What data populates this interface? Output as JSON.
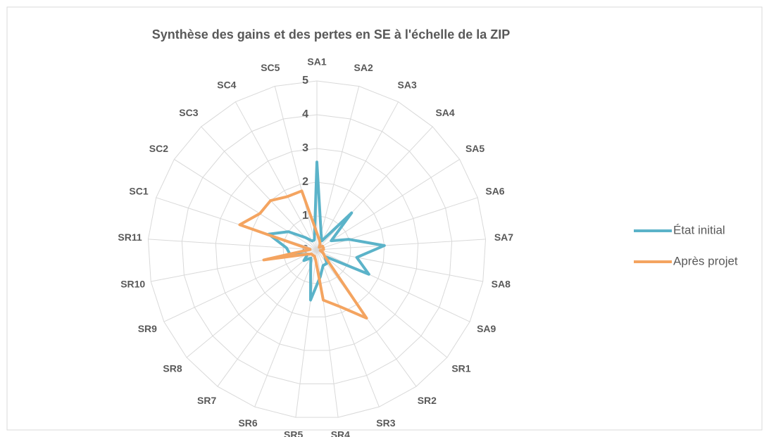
{
  "chart_data": {
    "type": "radar",
    "title": "Synthèse des gains et des pertes en SE à l'échelle de la ZIP",
    "categories": [
      "SA1",
      "SA2",
      "SA3",
      "SA4",
      "SA5",
      "SA6",
      "SA7",
      "SA8",
      "SA9",
      "SR1",
      "SR2",
      "SR3",
      "SR4",
      "SR5",
      "SR6",
      "SR7",
      "SR8",
      "SR9",
      "SR10",
      "SR11",
      "SC1",
      "SC2",
      "SC3",
      "SC4",
      "SC5"
    ],
    "series": [
      {
        "name": "État initial",
        "color": "#5bb3c9",
        "values": [
          2.6,
          0.5,
          0.3,
          1.5,
          0.5,
          1.0,
          2.0,
          1.2,
          1.7,
          0.3,
          0.5,
          0.5,
          0.8,
          1.5,
          0.5,
          0.3,
          0.5,
          0.3,
          0.8,
          0.9,
          1.5,
          1.0,
          0.5,
          0.3,
          0.3
        ]
      },
      {
        "name": "Après projet",
        "color": "#f4a460",
        "values": [
          0.5,
          0.3,
          0.2,
          0.1,
          0.2,
          0.2,
          0.2,
          0.1,
          0.2,
          0.3,
          2.5,
          1.8,
          1.5,
          0.3,
          0.2,
          0.2,
          0.2,
          0.3,
          1.6,
          0.2,
          2.4,
          2.0,
          2.0,
          1.8,
          1.8
        ]
      }
    ],
    "ylim": [
      0,
      5
    ],
    "yticks": [
      0,
      1,
      2,
      3,
      4,
      5
    ],
    "grid": true,
    "legend": "right"
  }
}
